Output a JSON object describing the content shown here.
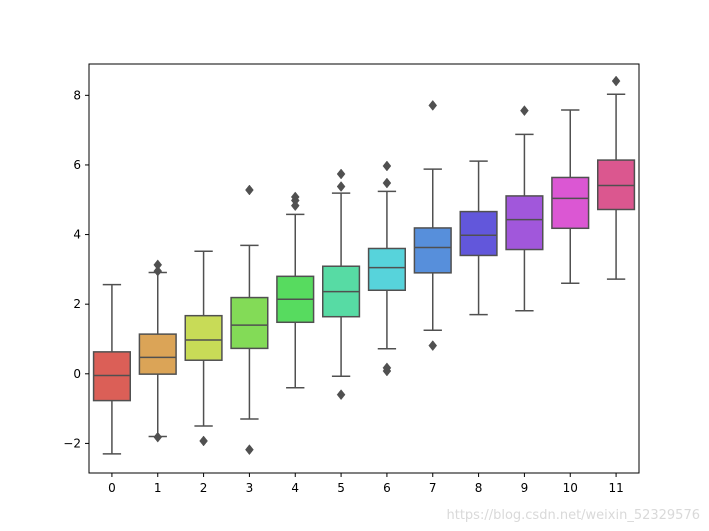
{
  "chart_data": {
    "type": "box",
    "title": "",
    "xlabel": "",
    "ylabel": "",
    "ylim": [
      -2.85,
      8.9
    ],
    "yticks": [
      -2,
      0,
      2,
      4,
      6,
      8
    ],
    "categories": [
      "0",
      "1",
      "2",
      "3",
      "4",
      "5",
      "6",
      "7",
      "8",
      "9",
      "10",
      "11"
    ],
    "grid": false,
    "boxes": [
      {
        "label": "0",
        "whislo": -2.3,
        "q1": -0.77,
        "med": -0.05,
        "q3": 0.63,
        "whishi": 2.56,
        "fliers": [],
        "color": "#db5f57"
      },
      {
        "label": "1",
        "whislo": -1.8,
        "q1": -0.01,
        "med": 0.47,
        "q3": 1.14,
        "whishi": 2.91,
        "fliers": [
          3.13,
          2.95,
          -1.82
        ],
        "color": "#dba457"
      },
      {
        "label": "2",
        "whislo": -1.5,
        "q1": 0.39,
        "med": 0.97,
        "q3": 1.67,
        "whishi": 3.52,
        "fliers": [
          -1.93
        ],
        "color": "#c8db57"
      },
      {
        "label": "3",
        "whislo": -1.3,
        "q1": 0.73,
        "med": 1.4,
        "q3": 2.19,
        "whishi": 3.69,
        "fliers": [
          5.28,
          -2.18
        ],
        "color": "#83db57"
      },
      {
        "label": "4",
        "whislo": -0.4,
        "q1": 1.48,
        "med": 2.14,
        "q3": 2.8,
        "whishi": 4.58,
        "fliers": [
          5.08,
          4.98,
          4.83
        ],
        "color": "#57db5f"
      },
      {
        "label": "5",
        "whislo": -0.07,
        "q1": 1.64,
        "med": 2.36,
        "q3": 3.09,
        "whishi": 5.19,
        "fliers": [
          5.74,
          5.38,
          -0.6
        ],
        "color": "#57dba4"
      },
      {
        "label": "6",
        "whislo": 0.72,
        "q1": 2.4,
        "med": 3.05,
        "q3": 3.6,
        "whishi": 5.24,
        "fliers": [
          5.97,
          5.48,
          0.17,
          0.08
        ],
        "color": "#57d3db"
      },
      {
        "label": "7",
        "whislo": 1.25,
        "q1": 2.9,
        "med": 3.63,
        "q3": 4.19,
        "whishi": 5.88,
        "fliers": [
          7.71,
          0.81
        ],
        "color": "#578fdb"
      },
      {
        "label": "8",
        "whislo": 1.7,
        "q1": 3.4,
        "med": 3.98,
        "q3": 4.66,
        "whishi": 6.11,
        "fliers": [],
        "color": "#6257db"
      },
      {
        "label": "9",
        "whislo": 1.81,
        "q1": 3.57,
        "med": 4.43,
        "q3": 5.11,
        "whishi": 6.88,
        "fliers": [
          7.56
        ],
        "color": "#a157db"
      },
      {
        "label": "10",
        "whislo": 2.6,
        "q1": 4.18,
        "med": 5.04,
        "q3": 5.64,
        "whishi": 7.58,
        "fliers": [],
        "color": "#db57d3"
      },
      {
        "label": "11",
        "whislo": 2.72,
        "q1": 4.72,
        "med": 5.41,
        "q3": 6.14,
        "whishi": 8.03,
        "fliers": [
          8.41
        ],
        "color": "#db578f"
      }
    ],
    "line_color": "#505050"
  },
  "watermark": "https://blog.csdn.net/weixin_52329576"
}
